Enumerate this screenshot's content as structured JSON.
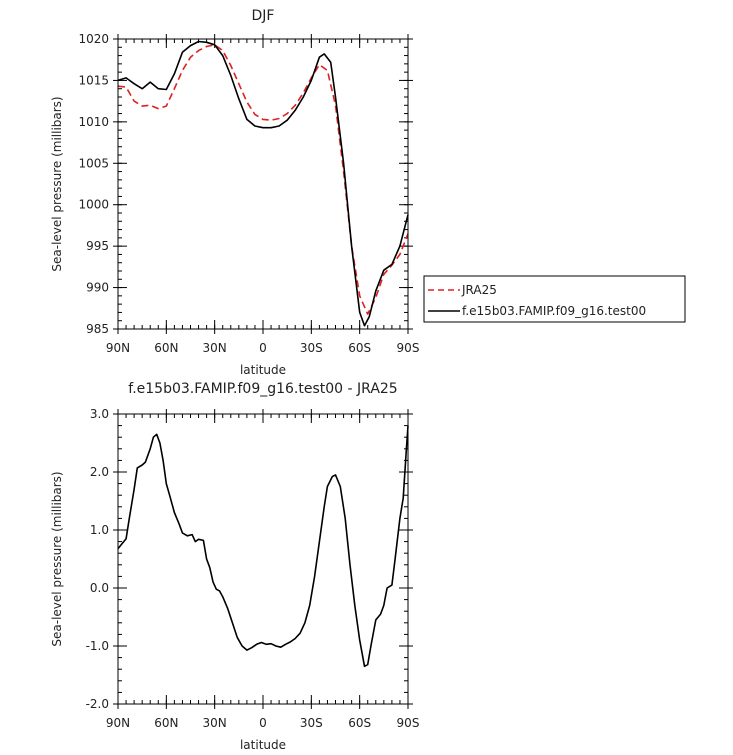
{
  "chart_data": [
    {
      "type": "line",
      "title": "DJF",
      "xlabel": "latitude",
      "ylabel": "Sea-level pressure (millibars)",
      "xlim": [
        90,
        -90
      ],
      "ylim": [
        985,
        1020
      ],
      "x_tick_values": [
        90,
        60,
        30,
        0,
        -30,
        -60,
        -90
      ],
      "x_tick_labels": [
        "90N",
        "60N",
        "30N",
        "0",
        "30S",
        "60S",
        "90S"
      ],
      "y_tick_values": [
        985,
        990,
        995,
        1000,
        1005,
        1010,
        1015,
        1020
      ],
      "y_tick_labels": [
        "985",
        "990",
        "995",
        "1000",
        "1005",
        "1010",
        "1015",
        "1020"
      ],
      "legend": "right",
      "series": [
        {
          "name": "JRA25",
          "color": "#e02020",
          "dash": "dashed",
          "points": [
            [
              90,
              1014.3
            ],
            [
              85,
              1014.2
            ],
            [
              80,
              1012.5
            ],
            [
              75,
              1011.9
            ],
            [
              70,
              1012.0
            ],
            [
              65,
              1011.6
            ],
            [
              60,
              1011.9
            ],
            [
              55,
              1014.0
            ],
            [
              50,
              1016.2
            ],
            [
              45,
              1017.8
            ],
            [
              40,
              1018.6
            ],
            [
              35,
              1019.1
            ],
            [
              30,
              1019.3
            ],
            [
              25,
              1018.6
            ],
            [
              20,
              1016.8
            ],
            [
              15,
              1014.6
            ],
            [
              10,
              1012.4
            ],
            [
              5,
              1010.9
            ],
            [
              0,
              1010.3
            ],
            [
              -5,
              1010.2
            ],
            [
              -10,
              1010.4
            ],
            [
              -15,
              1011.0
            ],
            [
              -20,
              1012.0
            ],
            [
              -25,
              1013.5
            ],
            [
              -30,
              1015.3
            ],
            [
              -35,
              1016.9
            ],
            [
              -40,
              1016.2
            ],
            [
              -45,
              1012.0
            ],
            [
              -50,
              1004.0
            ],
            [
              -55,
              995.0
            ],
            [
              -60,
              989.0
            ],
            [
              -65,
              986.8
            ],
            [
              -70,
              988.8
            ],
            [
              -75,
              991.6
            ],
            [
              -80,
              992.7
            ],
            [
              -85,
              994.0
            ],
            [
              -90,
              996.5
            ]
          ]
        },
        {
          "name": "f.e15b03.FAMIP.f09_g16.test00",
          "color": "#000000",
          "dash": "solid",
          "points": [
            [
              90,
              1015.0
            ],
            [
              85,
              1015.3
            ],
            [
              80,
              1014.6
            ],
            [
              75,
              1014.0
            ],
            [
              70,
              1014.8
            ],
            [
              65,
              1014.0
            ],
            [
              60,
              1013.9
            ],
            [
              55,
              1015.8
            ],
            [
              50,
              1018.4
            ],
            [
              45,
              1019.2
            ],
            [
              40,
              1019.7
            ],
            [
              35,
              1019.6
            ],
            [
              30,
              1019.3
            ],
            [
              25,
              1018.0
            ],
            [
              20,
              1015.6
            ],
            [
              15,
              1012.8
            ],
            [
              10,
              1010.3
            ],
            [
              5,
              1009.5
            ],
            [
              0,
              1009.3
            ],
            [
              -5,
              1009.3
            ],
            [
              -10,
              1009.5
            ],
            [
              -15,
              1010.2
            ],
            [
              -20,
              1011.4
            ],
            [
              -25,
              1013.0
            ],
            [
              -30,
              1015.0
            ],
            [
              -35,
              1017.8
            ],
            [
              -38,
              1018.2
            ],
            [
              -42,
              1017.2
            ],
            [
              -45,
              1013.0
            ],
            [
              -50,
              1005.0
            ],
            [
              -55,
              995.0
            ],
            [
              -60,
              987.0
            ],
            [
              -63,
              985.4
            ],
            [
              -66,
              986.5
            ],
            [
              -70,
              989.6
            ],
            [
              -75,
              992.1
            ],
            [
              -80,
              992.8
            ],
            [
              -85,
              995.0
            ],
            [
              -90,
              998.8
            ]
          ]
        }
      ]
    },
    {
      "type": "line",
      "title": "f.e15b03.FAMIP.f09_g16.test00 - JRA25",
      "xlabel": "latitude",
      "ylabel": "Sea-level pressure (millibars)",
      "xlim": [
        90,
        -90
      ],
      "ylim": [
        -2.0,
        3.0
      ],
      "x_tick_values": [
        90,
        60,
        30,
        0,
        -30,
        -60,
        -90
      ],
      "x_tick_labels": [
        "90N",
        "60N",
        "30N",
        "0",
        "30S",
        "60S",
        "90S"
      ],
      "y_tick_values": [
        -2.0,
        -1.0,
        0.0,
        1.0,
        2.0,
        3.0
      ],
      "y_tick_labels": [
        "-2.0",
        "-1.0",
        "0.0",
        "1.0",
        "2.0",
        "3.0"
      ],
      "series": [
        {
          "color": "#000000",
          "dash": "solid",
          "points": [
            [
              90,
              0.68
            ],
            [
              85,
              0.85
            ],
            [
              83,
              1.2
            ],
            [
              80,
              1.7
            ],
            [
              78,
              2.07
            ],
            [
              75,
              2.12
            ],
            [
              73,
              2.17
            ],
            [
              70,
              2.4
            ],
            [
              68,
              2.6
            ],
            [
              66,
              2.65
            ],
            [
              64,
              2.5
            ],
            [
              62,
              2.2
            ],
            [
              60,
              1.8
            ],
            [
              58,
              1.6
            ],
            [
              55,
              1.3
            ],
            [
              52,
              1.1
            ],
            [
              50,
              0.95
            ],
            [
              47,
              0.9
            ],
            [
              44,
              0.92
            ],
            [
              42,
              0.8
            ],
            [
              40,
              0.84
            ],
            [
              37,
              0.82
            ],
            [
              35,
              0.5
            ],
            [
              33,
              0.35
            ],
            [
              31,
              0.1
            ],
            [
              29,
              -0.02
            ],
            [
              27,
              -0.05
            ],
            [
              25,
              -0.15
            ],
            [
              22,
              -0.35
            ],
            [
              19,
              -0.6
            ],
            [
              16,
              -0.85
            ],
            [
              13,
              -1.0
            ],
            [
              10,
              -1.07
            ],
            [
              7,
              -1.03
            ],
            [
              4,
              -0.97
            ],
            [
              1,
              -0.94
            ],
            [
              -2,
              -0.97
            ],
            [
              -5,
              -0.96
            ],
            [
              -8,
              -1.0
            ],
            [
              -11,
              -1.02
            ],
            [
              -14,
              -0.97
            ],
            [
              -17,
              -0.93
            ],
            [
              -20,
              -0.87
            ],
            [
              -23,
              -0.78
            ],
            [
              -26,
              -0.6
            ],
            [
              -29,
              -0.3
            ],
            [
              -32,
              0.2
            ],
            [
              -35,
              0.8
            ],
            [
              -38,
              1.4
            ],
            [
              -40,
              1.75
            ],
            [
              -43,
              1.92
            ],
            [
              -45,
              1.95
            ],
            [
              -48,
              1.75
            ],
            [
              -51,
              1.2
            ],
            [
              -54,
              0.4
            ],
            [
              -57,
              -0.3
            ],
            [
              -60,
              -0.9
            ],
            [
              -63,
              -1.35
            ],
            [
              -65,
              -1.32
            ],
            [
              -67,
              -1.0
            ],
            [
              -70,
              -0.55
            ],
            [
              -73,
              -0.45
            ],
            [
              -75,
              -0.3
            ],
            [
              -77,
              0.0
            ],
            [
              -80,
              0.05
            ],
            [
              -82,
              0.5
            ],
            [
              -85,
              1.2
            ],
            [
              -87,
              1.55
            ],
            [
              -89,
              2.4
            ],
            [
              -90,
              2.8
            ]
          ]
        }
      ]
    }
  ]
}
